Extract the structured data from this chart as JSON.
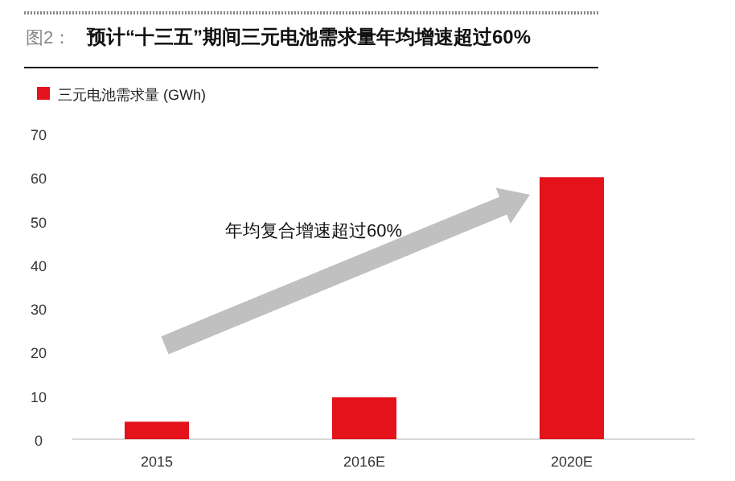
{
  "chart_data": {
    "type": "bar",
    "title": "预计“十三五”期间三元电池需求量年均增速超过60%",
    "annotations": [
      "图2：",
      "年均复合增速超过60%"
    ],
    "categories": [
      "2015",
      "2016E",
      "2020E"
    ],
    "series": [
      {
        "name": "三元电池需求量 (GWh)",
        "color": "#e3121b",
        "values": [
          4,
          9.6,
          60
        ]
      }
    ],
    "ylim": [
      0,
      70
    ],
    "yticks": [
      0,
      10,
      20,
      30,
      40,
      50,
      60,
      70
    ],
    "grid": false,
    "legend": "top left"
  }
}
